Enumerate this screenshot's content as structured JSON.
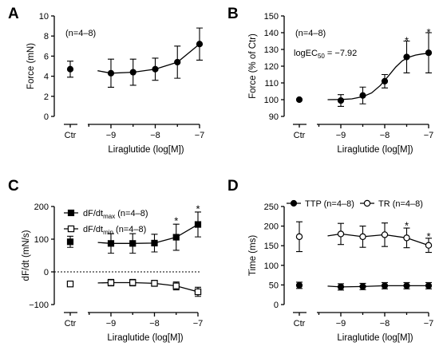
{
  "chart_data": [
    {
      "id": "A",
      "type": "line",
      "panel_letter": "A",
      "title": "",
      "annotation": "(n=4–8)",
      "xlabel": "Liraglutide (log[M])",
      "ylabel": "Force (mN)",
      "ylim": [
        0,
        10
      ],
      "yticks": [
        0,
        2,
        4,
        6,
        8,
        10
      ],
      "xlim": [
        -9.4,
        -7
      ],
      "xticks": [
        -9,
        -8,
        -7
      ],
      "x_tick_labels": [
        "−9",
        "−8",
        "−7"
      ],
      "ctr_label": "Ctr",
      "series": [
        {
          "name": "",
          "marker": "filled-circle",
          "ctr": {
            "y": 4.7,
            "err": 0.8
          },
          "x": [
            -9,
            -8.5,
            -8,
            -7.5,
            -7
          ],
          "y": [
            4.3,
            4.4,
            4.7,
            5.4,
            7.2
          ],
          "err": [
            1.4,
            1.3,
            1.1,
            1.6,
            1.6
          ],
          "curve": [
            [
              -9.3,
              4.55
            ],
            [
              -9,
              4.3
            ],
            [
              -8.5,
              4.4
            ],
            [
              -8,
              4.7
            ],
            [
              -7.5,
              5.4
            ],
            [
              -7,
              7.2
            ]
          ]
        }
      ],
      "significance": []
    },
    {
      "id": "B",
      "type": "line",
      "panel_letter": "B",
      "title": "",
      "annotation": "(n=4–8)",
      "annotation2": "logEC",
      "annotation2_sub": "50",
      "annotation2_tail": " = −7.92",
      "xlabel": "Liraglutide (log[M])",
      "ylabel": "Force (% of Ctr)",
      "ylim": [
        90,
        150
      ],
      "yticks": [
        90,
        100,
        110,
        120,
        130,
        140,
        150
      ],
      "xlim": [
        -9.4,
        -7
      ],
      "xticks": [
        -9,
        -8,
        -7
      ],
      "x_tick_labels": [
        "−9",
        "−8",
        "−7"
      ],
      "ctr_label": "Ctr",
      "series": [
        {
          "name": "",
          "marker": "filled-circle",
          "ctr": {
            "y": 100,
            "err": 0
          },
          "x": [
            -9,
            -8.5,
            -8,
            -7.5,
            -7
          ],
          "y": [
            99.5,
            102.5,
            111,
            125.5,
            128
          ],
          "err": [
            3.5,
            5,
            4,
            9.5,
            12
          ],
          "curve": [
            [
              -9.3,
              100
            ],
            [
              -9.0,
              100.1
            ],
            [
              -8.75,
              100.5
            ],
            [
              -8.5,
              101.8
            ],
            [
              -8.3,
              104
            ],
            [
              -8.1,
              108.5
            ],
            [
              -7.92,
              114
            ],
            [
              -7.75,
              119.5
            ],
            [
              -7.6,
              123.2
            ],
            [
              -7.45,
              125.4
            ],
            [
              -7.3,
              126.6
            ],
            [
              -7.15,
              127.3
            ],
            [
              -7.0,
              127.7
            ]
          ]
        }
      ],
      "significance": [
        {
          "x": -7.5,
          "y": 135,
          "label": "*"
        },
        {
          "x": -7,
          "y": 140,
          "label": "*"
        }
      ]
    },
    {
      "id": "C",
      "type": "line",
      "panel_letter": "C",
      "title": "",
      "xlabel": "Liraglutide (log[M])",
      "ylabel": "dF/dt (mN/s)",
      "ylim": [
        -100,
        200
      ],
      "yticks": [
        -100,
        0,
        100,
        200
      ],
      "xlim": [
        -9.4,
        -7
      ],
      "xticks": [
        -9,
        -8,
        -7
      ],
      "x_tick_labels": [
        "−9",
        "−8",
        "−7"
      ],
      "ctr_label": "Ctr",
      "zero_line": true,
      "series": [
        {
          "name": "dF/dt",
          "name_sub": "max",
          "name_tail": " (n=4–8)",
          "marker": "filled-square",
          "ctr": {
            "y": 92,
            "err": 17
          },
          "x": [
            -9,
            -8.5,
            -8,
            -7.5,
            -7
          ],
          "y": [
            87,
            87,
            88,
            106,
            145
          ],
          "err": [
            30,
            30,
            27,
            40,
            38
          ],
          "curve": [
            [
              -9.3,
              90
            ],
            [
              -9,
              87
            ],
            [
              -8.5,
              87
            ],
            [
              -8,
              88
            ],
            [
              -7.5,
              106
            ],
            [
              -7,
              145
            ]
          ]
        },
        {
          "name": "dF/dt",
          "name_sub": "min",
          "name_tail": " (n=4–8)",
          "marker": "open-square",
          "ctr": {
            "y": -37,
            "err": 6
          },
          "x": [
            -9,
            -8.5,
            -8,
            -7.5,
            -7
          ],
          "y": [
            -33,
            -33,
            -35,
            -43,
            -61
          ],
          "err": [
            10,
            10,
            9,
            12,
            14
          ],
          "curve": [
            [
              -9.3,
              -34
            ],
            [
              -9,
              -33
            ],
            [
              -8.5,
              -33
            ],
            [
              -8,
              -35
            ],
            [
              -7.5,
              -43
            ],
            [
              -7,
              -61
            ]
          ]
        }
      ],
      "significance": [
        {
          "x": -7.5,
          "y": 155,
          "label": "*"
        },
        {
          "x": -7,
          "y": 192,
          "label": "*"
        }
      ]
    },
    {
      "id": "D",
      "type": "line",
      "panel_letter": "D",
      "title": "",
      "xlabel": "Liraglutide (log[M])",
      "ylabel": "Time (ms)",
      "ylim": [
        0,
        250
      ],
      "yticks": [
        0,
        50,
        100,
        150,
        200,
        250
      ],
      "xlim": [
        -9.4,
        -7
      ],
      "xticks": [
        -9,
        -8,
        -7
      ],
      "x_tick_labels": [
        "−9",
        "−8",
        "−7"
      ],
      "ctr_label": "Ctr",
      "series": [
        {
          "name": "TTP (n=4–8)",
          "marker": "filled-circle",
          "ctr": {
            "y": 49,
            "err": 8
          },
          "x": [
            -9,
            -8.5,
            -8,
            -7.5,
            -7
          ],
          "y": [
            45,
            46,
            48,
            48,
            48
          ],
          "err": [
            8,
            8,
            8,
            8,
            8
          ],
          "curve": [
            [
              -9.3,
              47
            ],
            [
              -9,
              45
            ],
            [
              -8.5,
              46
            ],
            [
              -8,
              48
            ],
            [
              -7.5,
              48
            ],
            [
              -7,
              48
            ]
          ]
        },
        {
          "name": "TR (n=4–8)",
          "marker": "open-circle",
          "ctr": {
            "y": 173,
            "err": 38
          },
          "x": [
            -9,
            -8.5,
            -8,
            -7.5,
            -7
          ],
          "y": [
            180,
            173,
            178,
            170,
            151
          ],
          "err": [
            27,
            27,
            30,
            25,
            18
          ],
          "curve": [
            [
              -9.3,
              175
            ],
            [
              -9,
              180
            ],
            [
              -8.5,
              173
            ],
            [
              -8,
              178
            ],
            [
              -7.5,
              170
            ],
            [
              -7,
              151
            ]
          ]
        }
      ],
      "significance": [
        {
          "x": -7.5,
          "y": 200,
          "label": "*"
        },
        {
          "x": -7,
          "y": 173,
          "label": "*"
        }
      ]
    }
  ]
}
